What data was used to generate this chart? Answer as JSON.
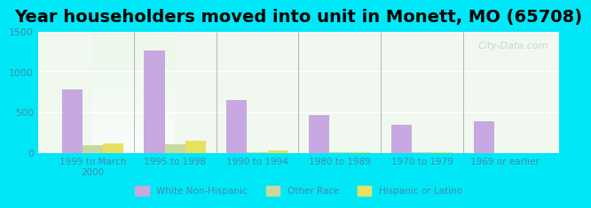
{
  "title": "Year householders moved into unit in Monett, MO (65708)",
  "categories": [
    "1999 to March\n2000",
    "1995 to 1998",
    "1990 to 1994",
    "1980 to 1989",
    "1970 to 1979",
    "1969 or earlier"
  ],
  "white_non_hispanic": [
    780,
    1270,
    655,
    470,
    345,
    385
  ],
  "other_race": [
    95,
    105,
    5,
    5,
    5,
    0
  ],
  "hispanic_or_latino": [
    115,
    150,
    30,
    10,
    5,
    0
  ],
  "bar_colors": {
    "white": "#c8a8e0",
    "other": "#c8d8a0",
    "hispanic": "#e8e060"
  },
  "ylim": [
    0,
    1500
  ],
  "yticks": [
    0,
    500,
    1000,
    1500
  ],
  "background_outer": "#00e8f8",
  "background_inner": "#f0f8f0",
  "grid_color": "#ffffff",
  "legend_labels": [
    "White Non-Hispanic",
    "Other Race",
    "Hispanic or Latino"
  ],
  "watermark": "City-Data.com",
  "bar_width": 0.25,
  "title_fontsize": 14
}
